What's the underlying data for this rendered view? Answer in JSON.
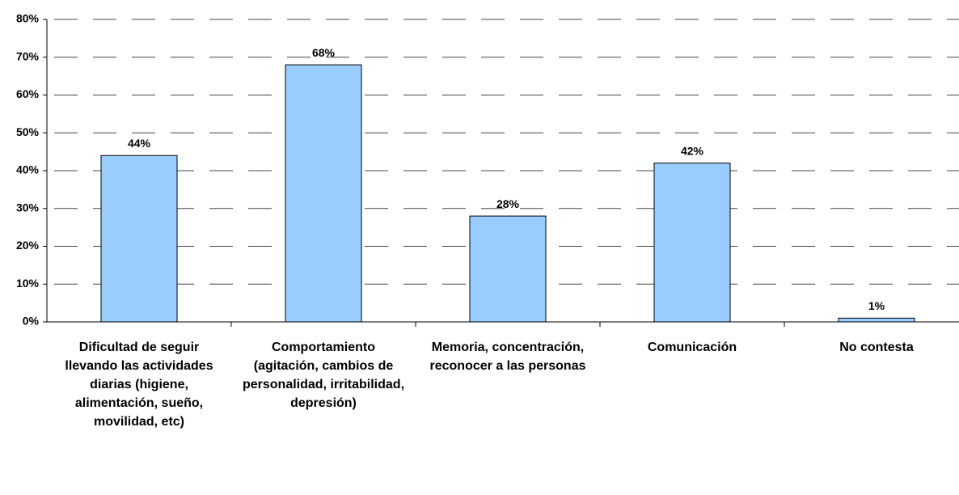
{
  "chart_data": {
    "type": "bar",
    "categories": [
      "Dificultad de seguir llevando las actividades diarias (higiene, alimentación, sueño, movilidad, etc)",
      "Comportamiento (agitación, cambios de personalidad, irritabilidad, depresión)",
      "Memoria, concentración, reconocer a las personas",
      "Comunicación",
      "No contesta"
    ],
    "values": [
      44,
      68,
      28,
      42,
      1
    ],
    "value_labels": [
      "44%",
      "68%",
      "28%",
      "42%",
      "1%"
    ],
    "color": "#99ccff",
    "ylim": [
      0,
      80
    ],
    "yticks": [
      {
        "value": 0,
        "label": "0%"
      },
      {
        "value": 10,
        "label": "10%"
      },
      {
        "value": 20,
        "label": "20%"
      },
      {
        "value": 30,
        "label": "30%"
      },
      {
        "value": 40,
        "label": "40%"
      },
      {
        "value": 50,
        "label": "50%"
      },
      {
        "value": 60,
        "label": "60%"
      },
      {
        "value": 70,
        "label": "70%"
      },
      {
        "value": 80,
        "label": "80%"
      }
    ],
    "grid": true
  }
}
